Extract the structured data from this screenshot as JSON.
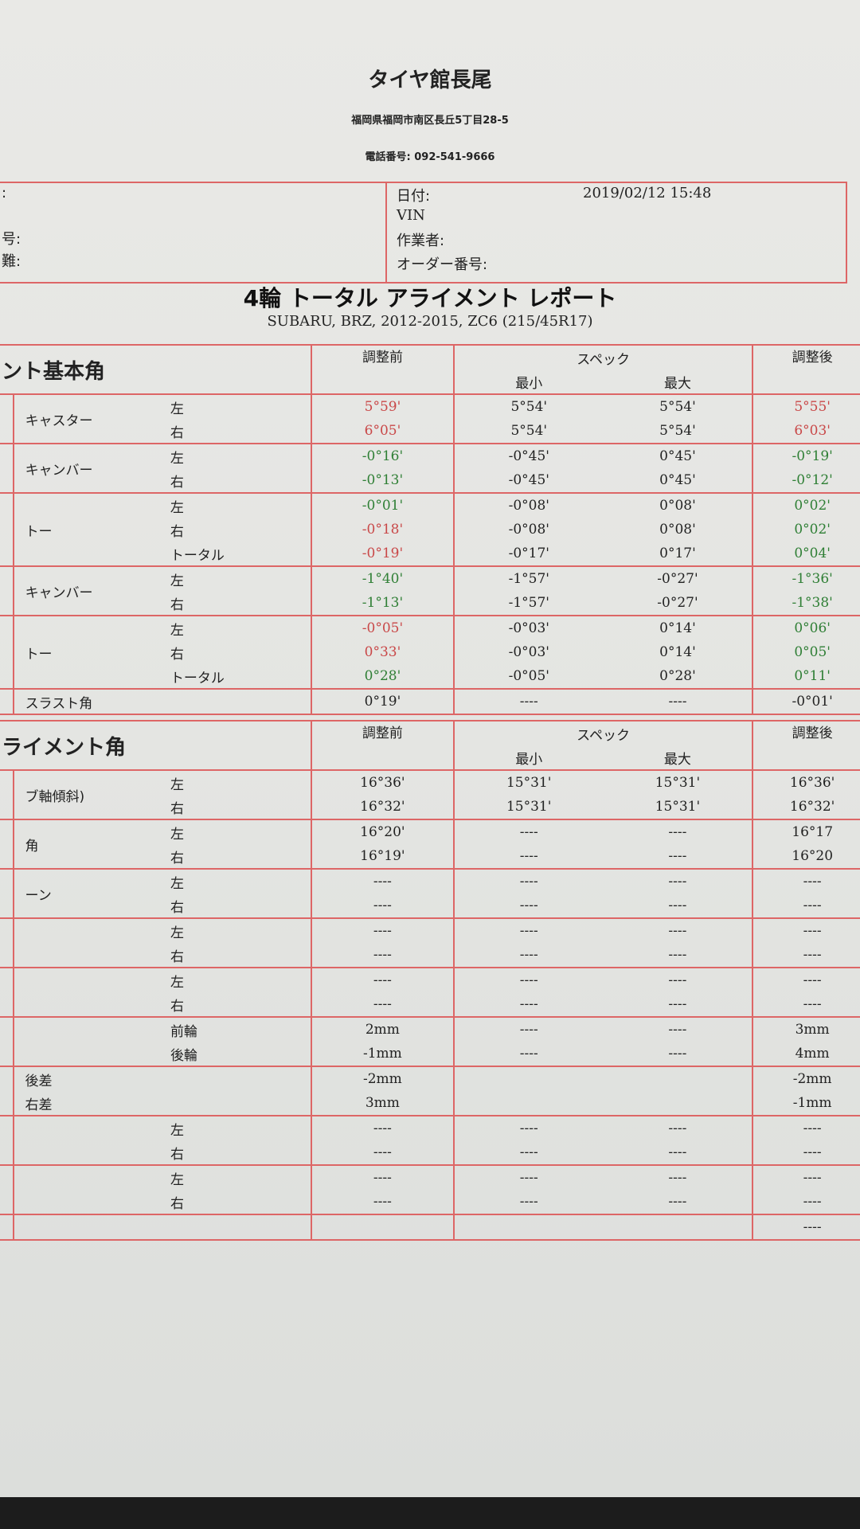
{
  "shop": {
    "name": "タイヤ館長尾",
    "address": "福岡県福岡市南区長丘5丁目28-5",
    "phone": "電話番号: 092-541-9666"
  },
  "info": {
    "left": [
      ":",
      "号:",
      "難:"
    ],
    "date_label": "日付:",
    "date_value": "2019/02/12 15:48",
    "vin_label": "VIN",
    "operator_label": "作業者:",
    "order_label": "オーダー番号:"
  },
  "report": {
    "title": "4輪 トータル アライメント レポート",
    "vehicle": "SUBARU, BRZ, 2012-2015, ZC6 (215/45R17)"
  },
  "colors": {
    "out_of_spec": "#c94848",
    "in_spec": "#2f7f35",
    "grid": "#dd6666"
  },
  "headers": {
    "before": "調整前",
    "spec": "スペック",
    "min": "最小",
    "max": "最大",
    "after": "調整後"
  },
  "sections": [
    {
      "title": "ント基本角",
      "groups": [
        {
          "name": "キャスター",
          "rows": [
            [
              "左",
              "5°59'",
              "5°54'",
              "5°54'",
              "5°55'",
              "r",
              "r"
            ],
            [
              "右",
              "6°05'",
              "5°54'",
              "5°54'",
              "6°03'",
              "r",
              "r"
            ]
          ]
        },
        {
          "name": "キャンバー",
          "rows": [
            [
              "左",
              "-0°16'",
              "-0°45'",
              "0°45'",
              "-0°19'",
              "g",
              "g"
            ],
            [
              "右",
              "-0°13'",
              "-0°45'",
              "0°45'",
              "-0°12'",
              "g",
              "g"
            ]
          ]
        },
        {
          "name": "トー",
          "rows": [
            [
              "左",
              "-0°01'",
              "-0°08'",
              "0°08'",
              "0°02'",
              "g",
              "g"
            ],
            [
              "右",
              "-0°18'",
              "-0°08'",
              "0°08'",
              "0°02'",
              "r",
              "g"
            ],
            [
              "トータル",
              "-0°19'",
              "-0°17'",
              "0°17'",
              "0°04'",
              "r",
              "g"
            ]
          ]
        },
        {
          "name": "キャンバー",
          "rows": [
            [
              "左",
              "-1°40'",
              "-1°57'",
              "-0°27'",
              "-1°36'",
              "g",
              "g"
            ],
            [
              "右",
              "-1°13'",
              "-1°57'",
              "-0°27'",
              "-1°38'",
              "g",
              "g"
            ]
          ]
        },
        {
          "name": "トー",
          "rows": [
            [
              "左",
              "-0°05'",
              "-0°03'",
              "0°14'",
              "0°06'",
              "r",
              "g"
            ],
            [
              "右",
              "0°33'",
              "-0°03'",
              "0°14'",
              "0°05'",
              "r",
              "g"
            ],
            [
              "トータル",
              "0°28'",
              "-0°05'",
              "0°28'",
              "0°11'",
              "g",
              "g"
            ]
          ]
        },
        {
          "name": "スラスト角",
          "rows": [
            [
              "",
              "0°19'",
              "----",
              "----",
              "-0°01'",
              "",
              ""
            ]
          ]
        }
      ]
    },
    {
      "title": "ライメント角",
      "groups": [
        {
          "name": "ブ軸傾斜)",
          "rows": [
            [
              "左",
              "16°36'",
              "15°31'",
              "15°31'",
              "16°36'",
              "",
              ""
            ],
            [
              "右",
              "16°32'",
              "15°31'",
              "15°31'",
              "16°32'",
              "",
              ""
            ]
          ]
        },
        {
          "name": "角",
          "rows": [
            [
              "左",
              "16°20'",
              "----",
              "----",
              "16°17",
              "",
              ""
            ],
            [
              "右",
              "16°19'",
              "----",
              "----",
              "16°20",
              "",
              ""
            ]
          ]
        },
        {
          "name": "ーン",
          "rows": [
            [
              "左",
              "----",
              "----",
              "----",
              "----",
              "",
              ""
            ],
            [
              "右",
              "----",
              "----",
              "----",
              "----",
              "",
              ""
            ]
          ]
        },
        {
          "name": "",
          "rows": [
            [
              "左",
              "----",
              "----",
              "----",
              "----",
              "",
              ""
            ],
            [
              "右",
              "----",
              "----",
              "----",
              "----",
              "",
              ""
            ]
          ]
        },
        {
          "name": "",
          "rows": [
            [
              "左",
              "----",
              "----",
              "----",
              "----",
              "",
              ""
            ],
            [
              "右",
              "----",
              "----",
              "----",
              "----",
              "",
              ""
            ]
          ]
        },
        {
          "name": "",
          "rows": [
            [
              "前輪",
              "2mm",
              "----",
              "----",
              "3mm",
              "",
              ""
            ],
            [
              "後輪",
              "-1mm",
              "----",
              "----",
              "4mm",
              "",
              ""
            ]
          ]
        },
        {
          "name": "後差",
          "name2": "右差",
          "rows": [
            [
              "",
              "-2mm",
              "",
              "",
              "-2mm",
              "",
              ""
            ],
            [
              "",
              "3mm",
              "",
              "",
              "-1mm",
              "",
              ""
            ]
          ]
        },
        {
          "name": "",
          "rows": [
            [
              "左",
              "----",
              "----",
              "----",
              "----",
              "",
              ""
            ],
            [
              "右",
              "----",
              "----",
              "----",
              "----",
              "",
              ""
            ]
          ]
        },
        {
          "name": "",
          "rows": [
            [
              "左",
              "----",
              "----",
              "----",
              "----",
              "",
              ""
            ],
            [
              "右",
              "----",
              "----",
              "----",
              "----",
              "",
              ""
            ]
          ]
        },
        {
          "name": "",
          "rows": [
            [
              "",
              "",
              "",
              "",
              "----",
              "",
              ""
            ]
          ]
        }
      ]
    }
  ]
}
